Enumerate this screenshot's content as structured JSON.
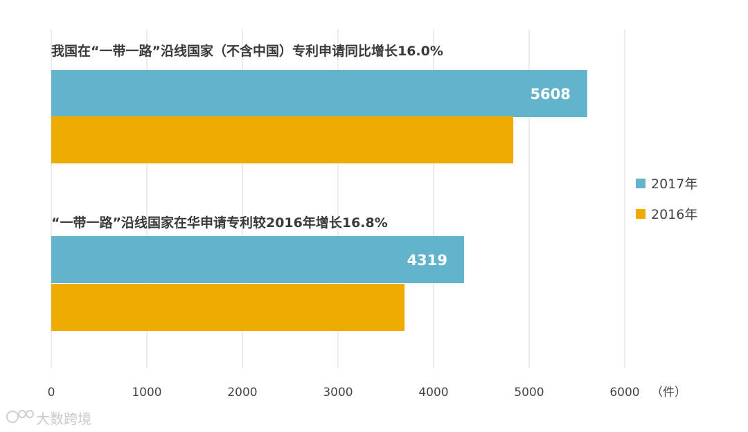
{
  "chart_data": {
    "type": "bar",
    "orientation": "horizontal",
    "groups": [
      {
        "title": "我国在“一带一路”沿线国家（不含中国）专利申请同比增长16.0%",
        "values": {
          "2017年": 5608,
          "2016年": 4834
        },
        "data_label": "5608"
      },
      {
        "title": "“一带一路”沿线国家在华申请专利较2016年增长16.8%",
        "values": {
          "2017年": 4319,
          "2016年": 3697
        },
        "data_label": "4319"
      }
    ],
    "series": [
      {
        "name": "2017年",
        "color": "#62b3cb"
      },
      {
        "name": "2016年",
        "color": "#eeab00"
      }
    ],
    "xlim": [
      0,
      6000
    ],
    "xticks": [
      "0",
      "1000",
      "2000",
      "3000",
      "4000",
      "5000",
      "6000"
    ],
    "unit_label": "（件）",
    "grid": true,
    "legend_position": "right"
  },
  "watermark": "大数跨境"
}
